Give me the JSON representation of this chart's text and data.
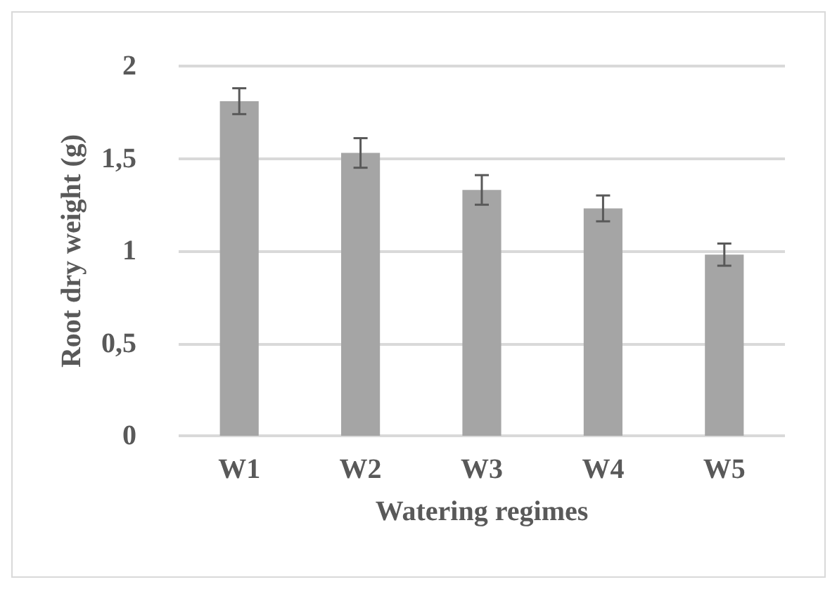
{
  "chart_data": {
    "type": "bar",
    "xlabel": "Watering regimes",
    "ylabel": "Root dry weight (g)",
    "categories": [
      "W1",
      "W2",
      "W3",
      "W4",
      "W5"
    ],
    "values": [
      1.81,
      1.53,
      1.33,
      1.23,
      0.98
    ],
    "errors": [
      0.07,
      0.08,
      0.08,
      0.07,
      0.06
    ],
    "color": "#a5a5a5",
    "ylim": [
      0,
      2
    ],
    "yticks": [
      0,
      {
        "value": 0.5,
        "label": "0,5"
      },
      1,
      {
        "value": 1.5,
        "label": "1,5"
      },
      2
    ],
    "grid": true
  }
}
